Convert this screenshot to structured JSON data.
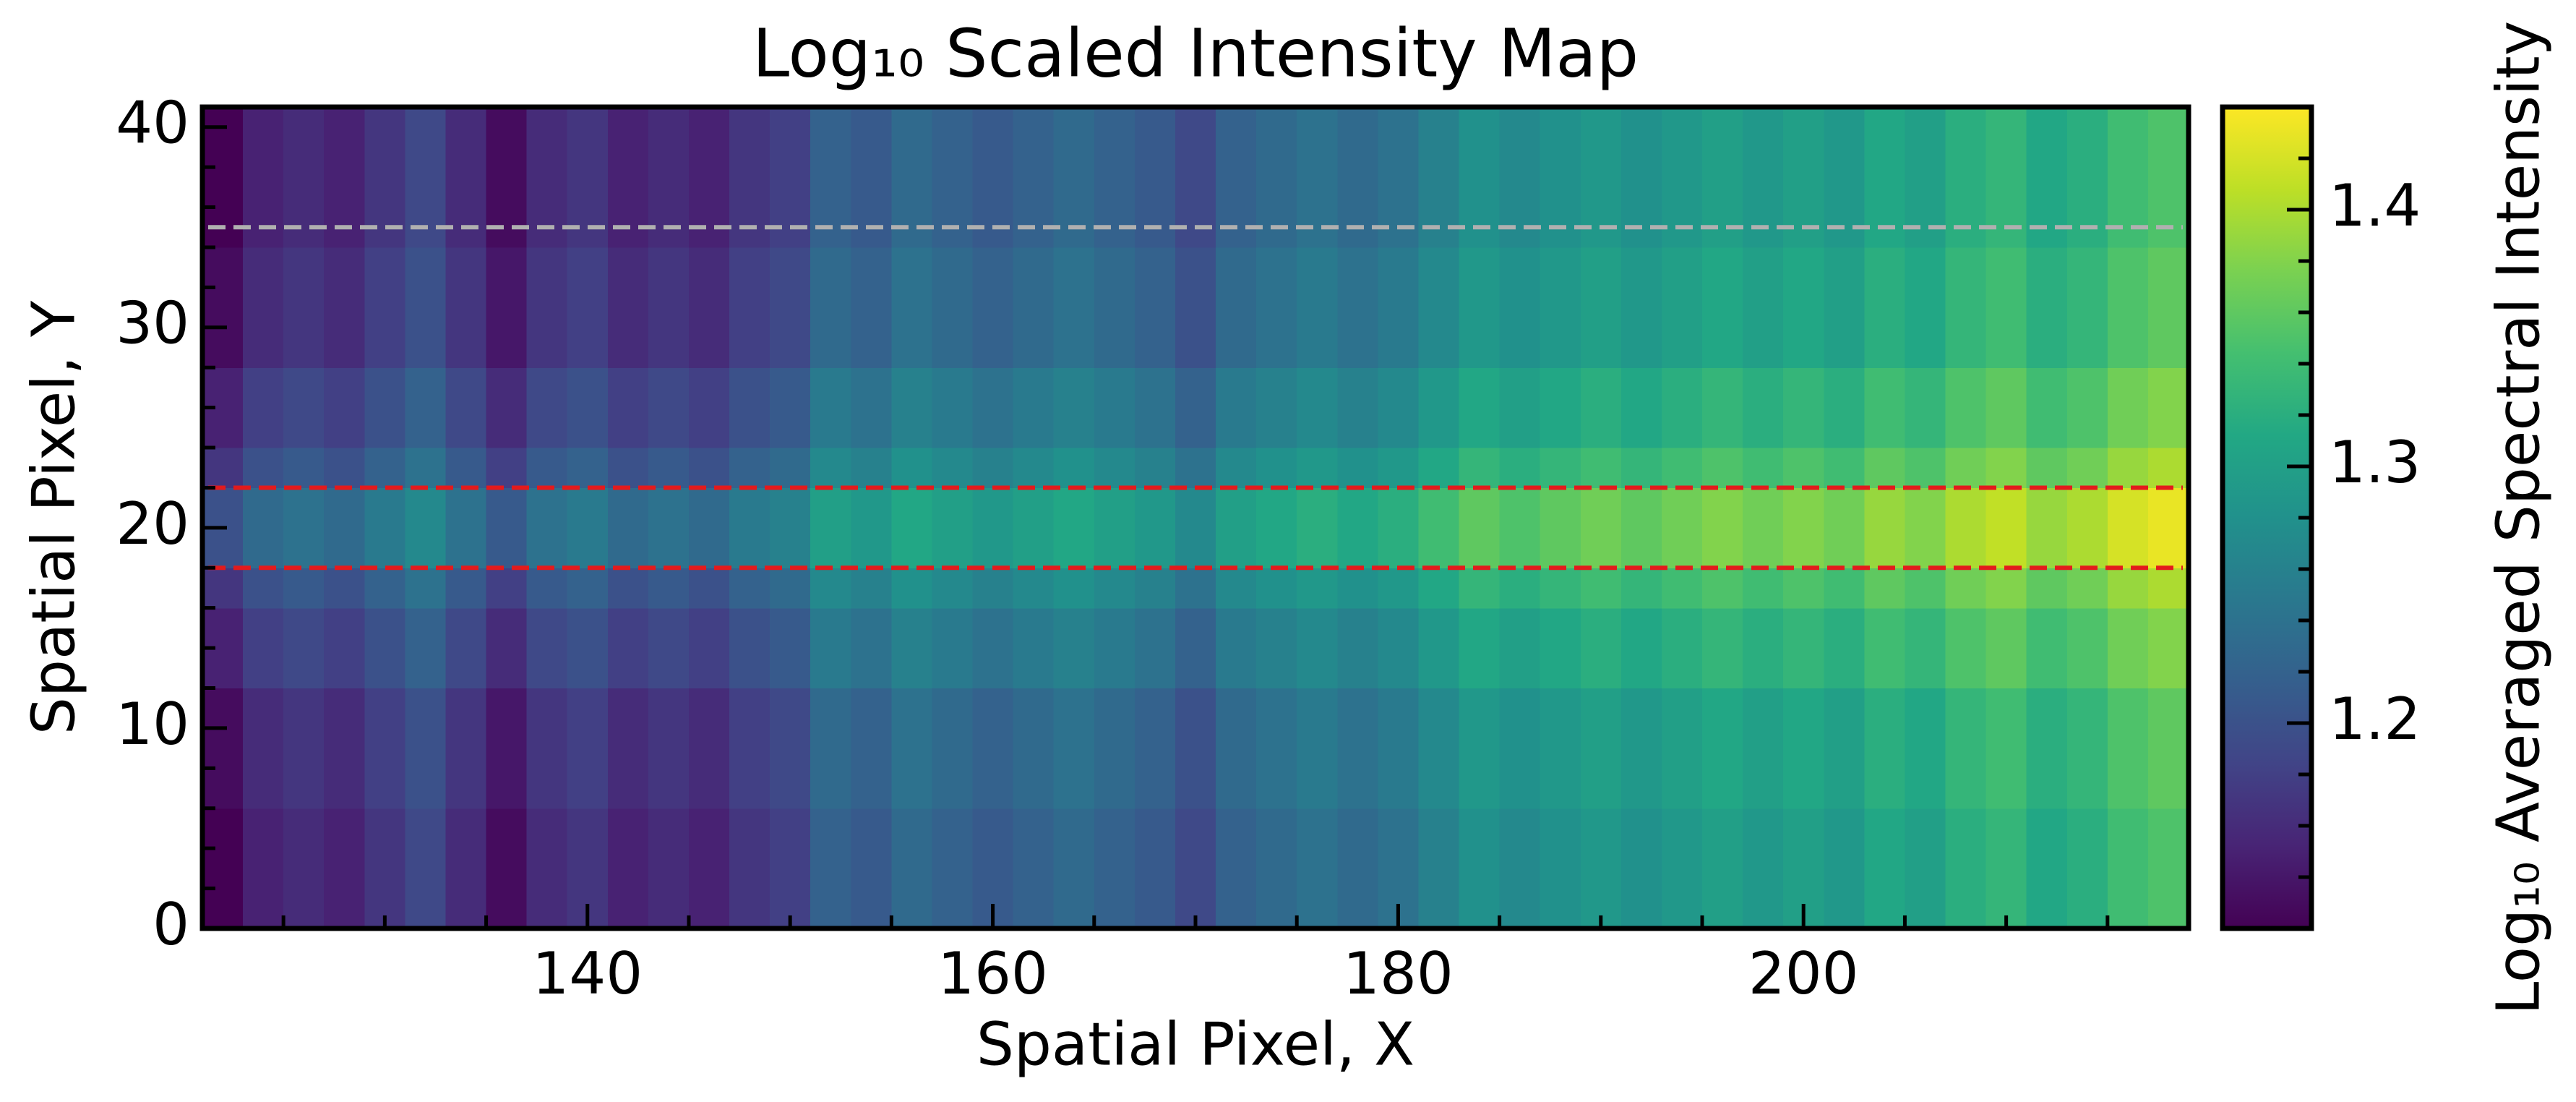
{
  "chart_data": {
    "type": "heatmap",
    "title": "Log₁₀ Scaled Intensity Map",
    "xlabel": "Spatial Pixel, X",
    "ylabel": "Spatial Pixel, Y",
    "colorbar_label": "Log₁₀ Averaged Spectral Intensity",
    "colormap": "viridis",
    "xlim": [
      121,
      219
    ],
    "ylim": [
      0,
      41
    ],
    "clim": [
      1.12,
      1.44
    ],
    "xticks": [
      140,
      160,
      180,
      200
    ],
    "xminorticks": [
      125,
      130,
      135,
      145,
      150,
      155,
      165,
      170,
      175,
      185,
      190,
      195,
      205,
      210,
      215
    ],
    "yticks": [
      0,
      10,
      20,
      30,
      40
    ],
    "yminorticks": [
      2,
      4,
      6,
      8,
      12,
      14,
      16,
      18,
      22,
      24,
      26,
      28,
      32,
      34,
      36,
      38
    ],
    "cticks": [
      1.2,
      1.3,
      1.4
    ],
    "cminorticks": [
      1.14,
      1.16,
      1.18,
      1.22,
      1.24,
      1.26,
      1.28,
      1.32,
      1.34,
      1.36,
      1.38,
      1.42
    ],
    "hlines": [
      {
        "y": 35,
        "color": "#b0b0b0"
      },
      {
        "y": 22,
        "color": "#e41a1c"
      },
      {
        "y": 18,
        "color": "#e41a1c"
      }
    ],
    "xbins": [
      121,
      123,
      125,
      127,
      129,
      131,
      133,
      135,
      137,
      139,
      141,
      143,
      145,
      147,
      149,
      151,
      153,
      155,
      157,
      159,
      161,
      163,
      165,
      167,
      169,
      171,
      173,
      175,
      177,
      179,
      181,
      183,
      185,
      187,
      189,
      191,
      193,
      195,
      197,
      199,
      201,
      203,
      205,
      207,
      209,
      211,
      213,
      215,
      217,
      219
    ],
    "ybins": [
      0,
      6,
      12,
      16,
      18,
      20,
      22,
      24,
      28,
      34,
      41
    ],
    "z": [
      [
        1.12,
        1.15,
        1.16,
        1.15,
        1.17,
        1.19,
        1.16,
        1.13,
        1.16,
        1.17,
        1.15,
        1.16,
        1.15,
        1.17,
        1.18,
        1.22,
        1.21,
        1.23,
        1.22,
        1.21,
        1.22,
        1.23,
        1.22,
        1.21,
        1.19,
        1.22,
        1.23,
        1.24,
        1.23,
        1.24,
        1.26,
        1.28,
        1.27,
        1.28,
        1.29,
        1.28,
        1.29,
        1.3,
        1.29,
        1.3,
        1.29,
        1.31,
        1.3,
        1.32,
        1.33,
        1.31,
        1.32,
        1.34,
        1.35
      ],
      [
        1.13,
        1.16,
        1.17,
        1.16,
        1.18,
        1.2,
        1.17,
        1.14,
        1.17,
        1.18,
        1.16,
        1.17,
        1.16,
        1.18,
        1.19,
        1.23,
        1.22,
        1.24,
        1.23,
        1.22,
        1.23,
        1.24,
        1.23,
        1.22,
        1.2,
        1.23,
        1.24,
        1.25,
        1.24,
        1.25,
        1.27,
        1.29,
        1.28,
        1.29,
        1.3,
        1.29,
        1.3,
        1.31,
        1.3,
        1.31,
        1.3,
        1.32,
        1.31,
        1.33,
        1.34,
        1.32,
        1.33,
        1.35,
        1.36
      ],
      [
        1.15,
        1.18,
        1.19,
        1.18,
        1.2,
        1.22,
        1.19,
        1.16,
        1.19,
        1.2,
        1.18,
        1.19,
        1.18,
        1.2,
        1.21,
        1.25,
        1.24,
        1.26,
        1.25,
        1.24,
        1.25,
        1.26,
        1.25,
        1.24,
        1.22,
        1.25,
        1.26,
        1.27,
        1.26,
        1.27,
        1.29,
        1.31,
        1.3,
        1.31,
        1.32,
        1.31,
        1.32,
        1.33,
        1.32,
        1.33,
        1.32,
        1.34,
        1.33,
        1.35,
        1.36,
        1.34,
        1.35,
        1.37,
        1.38
      ],
      [
        1.17,
        1.2,
        1.21,
        1.2,
        1.22,
        1.24,
        1.21,
        1.18,
        1.21,
        1.22,
        1.2,
        1.21,
        1.2,
        1.22,
        1.23,
        1.27,
        1.26,
        1.28,
        1.27,
        1.26,
        1.27,
        1.28,
        1.27,
        1.26,
        1.24,
        1.27,
        1.28,
        1.29,
        1.28,
        1.29,
        1.31,
        1.33,
        1.32,
        1.33,
        1.34,
        1.33,
        1.34,
        1.35,
        1.34,
        1.35,
        1.34,
        1.36,
        1.35,
        1.37,
        1.38,
        1.36,
        1.37,
        1.39,
        1.4
      ],
      [
        1.2,
        1.23,
        1.24,
        1.23,
        1.25,
        1.27,
        1.24,
        1.21,
        1.24,
        1.25,
        1.23,
        1.24,
        1.23,
        1.25,
        1.26,
        1.3,
        1.29,
        1.31,
        1.3,
        1.29,
        1.3,
        1.31,
        1.3,
        1.29,
        1.27,
        1.3,
        1.31,
        1.32,
        1.31,
        1.32,
        1.34,
        1.36,
        1.35,
        1.36,
        1.37,
        1.36,
        1.37,
        1.38,
        1.37,
        1.38,
        1.37,
        1.39,
        1.38,
        1.4,
        1.41,
        1.39,
        1.4,
        1.42,
        1.43
      ],
      [
        1.2,
        1.23,
        1.24,
        1.23,
        1.25,
        1.27,
        1.24,
        1.21,
        1.24,
        1.25,
        1.23,
        1.24,
        1.23,
        1.25,
        1.26,
        1.3,
        1.29,
        1.31,
        1.3,
        1.29,
        1.3,
        1.31,
        1.3,
        1.29,
        1.27,
        1.3,
        1.31,
        1.32,
        1.31,
        1.32,
        1.34,
        1.36,
        1.35,
        1.36,
        1.37,
        1.36,
        1.37,
        1.38,
        1.37,
        1.38,
        1.37,
        1.39,
        1.38,
        1.4,
        1.41,
        1.39,
        1.4,
        1.42,
        1.43
      ],
      [
        1.17,
        1.2,
        1.21,
        1.2,
        1.22,
        1.24,
        1.21,
        1.18,
        1.21,
        1.22,
        1.2,
        1.21,
        1.2,
        1.22,
        1.23,
        1.27,
        1.26,
        1.28,
        1.27,
        1.26,
        1.27,
        1.28,
        1.27,
        1.26,
        1.24,
        1.27,
        1.28,
        1.29,
        1.28,
        1.29,
        1.31,
        1.33,
        1.32,
        1.33,
        1.34,
        1.33,
        1.34,
        1.35,
        1.34,
        1.35,
        1.34,
        1.36,
        1.35,
        1.37,
        1.38,
        1.36,
        1.37,
        1.39,
        1.4
      ],
      [
        1.15,
        1.18,
        1.19,
        1.18,
        1.2,
        1.22,
        1.19,
        1.16,
        1.19,
        1.2,
        1.18,
        1.19,
        1.18,
        1.2,
        1.21,
        1.25,
        1.24,
        1.26,
        1.25,
        1.24,
        1.25,
        1.26,
        1.25,
        1.24,
        1.22,
        1.25,
        1.26,
        1.27,
        1.26,
        1.27,
        1.29,
        1.31,
        1.3,
        1.31,
        1.32,
        1.31,
        1.32,
        1.33,
        1.32,
        1.33,
        1.32,
        1.34,
        1.33,
        1.35,
        1.36,
        1.34,
        1.35,
        1.37,
        1.38
      ],
      [
        1.13,
        1.16,
        1.17,
        1.16,
        1.18,
        1.2,
        1.17,
        1.14,
        1.17,
        1.18,
        1.16,
        1.17,
        1.16,
        1.18,
        1.19,
        1.23,
        1.22,
        1.24,
        1.23,
        1.22,
        1.23,
        1.24,
        1.23,
        1.22,
        1.2,
        1.23,
        1.24,
        1.25,
        1.24,
        1.25,
        1.27,
        1.29,
        1.28,
        1.29,
        1.3,
        1.29,
        1.3,
        1.31,
        1.3,
        1.31,
        1.3,
        1.32,
        1.31,
        1.33,
        1.34,
        1.32,
        1.33,
        1.35,
        1.36
      ],
      [
        1.12,
        1.15,
        1.16,
        1.15,
        1.17,
        1.19,
        1.16,
        1.13,
        1.16,
        1.17,
        1.15,
        1.16,
        1.15,
        1.17,
        1.18,
        1.22,
        1.21,
        1.23,
        1.22,
        1.21,
        1.22,
        1.23,
        1.22,
        1.21,
        1.19,
        1.22,
        1.23,
        1.24,
        1.23,
        1.24,
        1.26,
        1.28,
        1.27,
        1.28,
        1.29,
        1.28,
        1.29,
        1.3,
        1.29,
        1.3,
        1.29,
        1.31,
        1.3,
        1.32,
        1.33,
        1.31,
        1.32,
        1.34,
        1.35
      ]
    ]
  }
}
